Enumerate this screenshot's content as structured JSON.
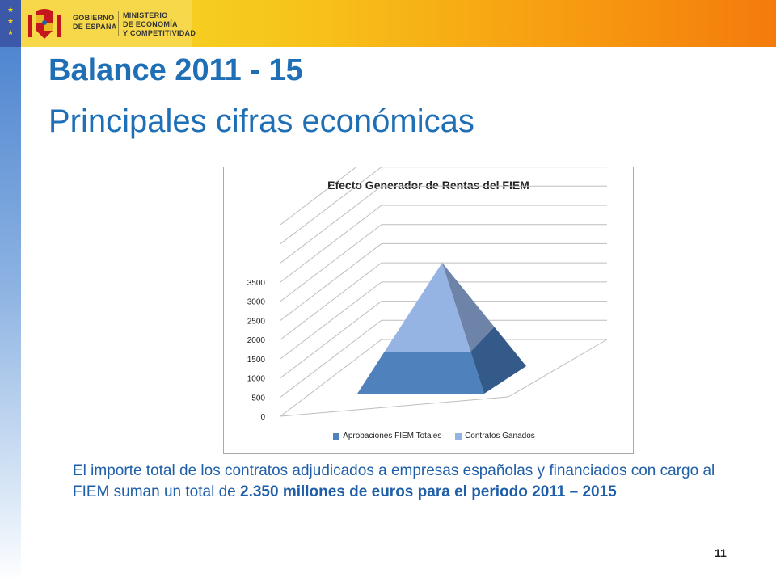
{
  "header": {
    "gov_line1": "GOBIERNO",
    "gov_line2": "DE ESPAÑA",
    "ministry_line1": "MINISTERIO",
    "ministry_line2": "DE ECONOMÍA",
    "ministry_line3": "Y COMPETITIVIDAD"
  },
  "title": {
    "line1": "Balance 2011 - 15",
    "line2": "Principales cifras económicas"
  },
  "chart_data": {
    "type": "bar",
    "title": "Efecto Generador de Rentas del FIEM",
    "y_ticks": [
      "0",
      "500",
      "1000",
      "1500",
      "2000",
      "2500",
      "3000",
      "3500"
    ],
    "ylim": [
      0,
      3500
    ],
    "series": [
      {
        "name": "Aprobaciones FIEM Totales",
        "color": "#4f81bd",
        "values": []
      },
      {
        "name": "Contratos Ganados",
        "color": "#95b3e3",
        "values": []
      }
    ],
    "legend": "bottom",
    "grid": true
  },
  "body": {
    "part1": "El importe total de los contratos adjudicados a empresas españolas y financiados con cargo al FIEM suman un total de ",
    "bold1": "2.350 millones de euros para el periodo 2011 – 2015"
  },
  "page_number": "11",
  "colors": {
    "title": "#1f6fb6",
    "body": "#1f5ea8",
    "series_dark": "#4f81bd",
    "series_light": "#95b3e3"
  }
}
